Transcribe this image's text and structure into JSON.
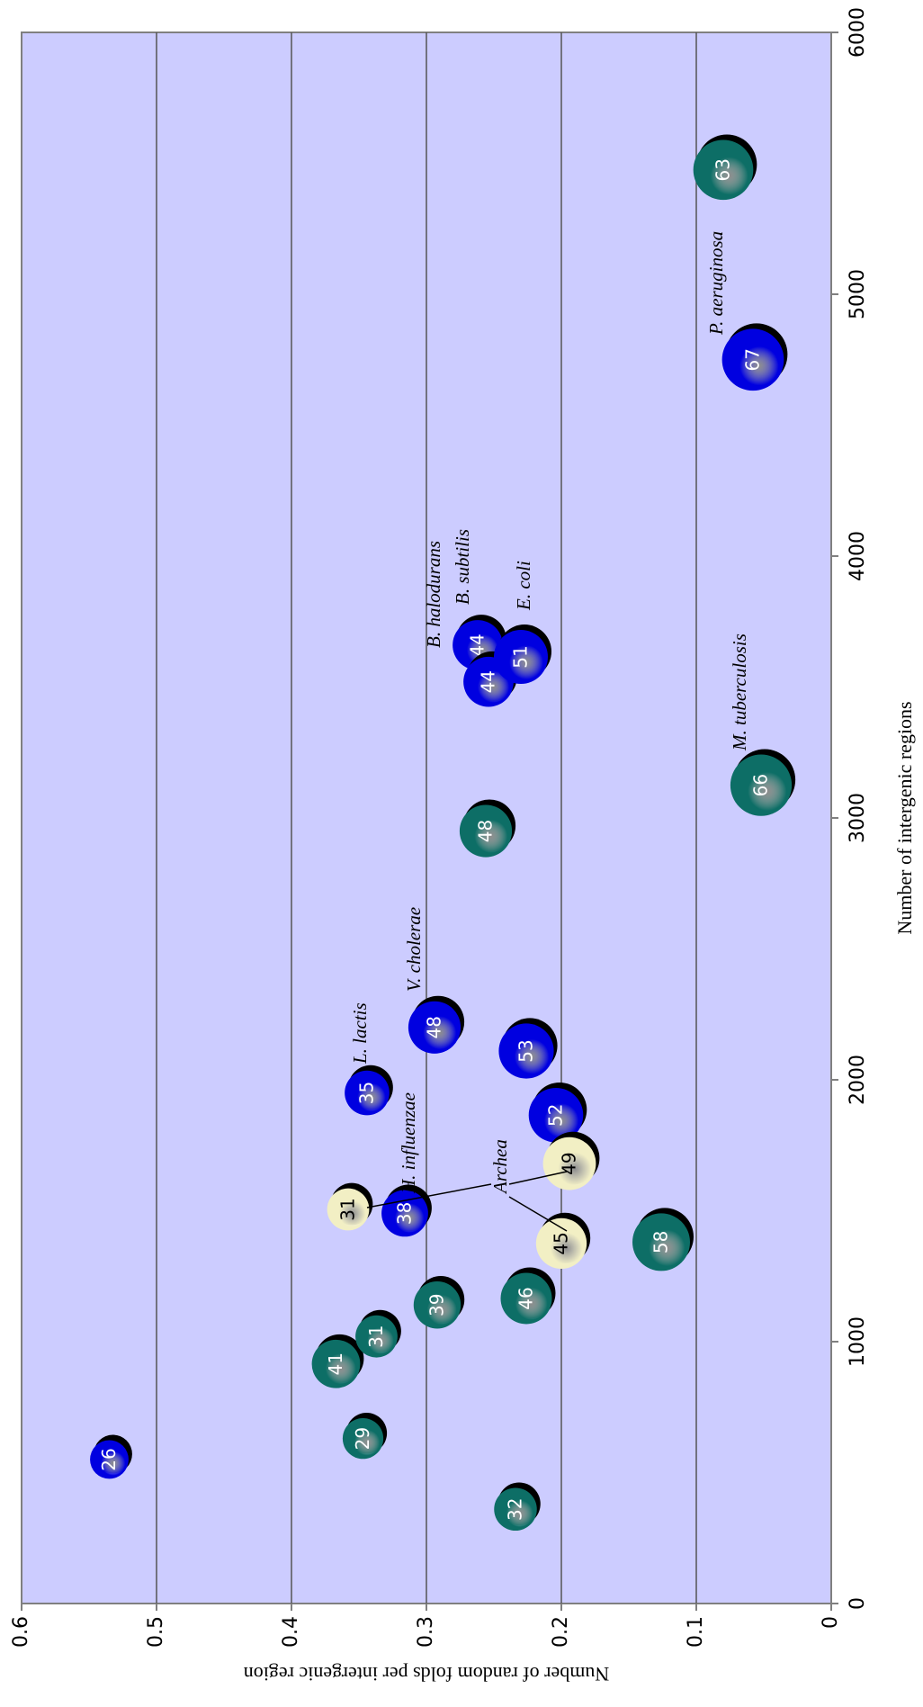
{
  "chart_data": {
    "type": "bubble",
    "x_label": "Number of intergenic regions",
    "y_label": "Number of random folds per intergenic region",
    "xlim": [
      0,
      6000
    ],
    "xticks": [
      0,
      1000,
      2000,
      3000,
      4000,
      5000,
      6000
    ],
    "ylim": [
      0,
      0.6
    ],
    "yticks": [
      0,
      0.1,
      0.2,
      0.3,
      0.4,
      0.5,
      0.6
    ],
    "grid": true,
    "series": [
      {
        "color": "#0000e0",
        "x": [
          550,
          1950,
          1490,
          2200,
          2110,
          1865,
          3660,
          3520,
          3615,
          4750
        ],
        "values": [
          0.535,
          0.344,
          0.316,
          0.294,
          0.226,
          0.204,
          0.262,
          0.254,
          0.23,
          0.058
        ],
        "sizes": [
          26,
          35,
          38,
          48,
          53,
          52,
          44,
          44,
          51,
          67
        ]
      },
      {
        "color": "#0d6e66",
        "x": [
          360,
          630,
          915,
          1020,
          1140,
          1165,
          1380,
          2950,
          3125,
          5475
        ],
        "values": [
          0.234,
          0.347,
          0.367,
          0.337,
          0.292,
          0.226,
          0.126,
          0.256,
          0.052,
          0.08
        ],
        "sizes": [
          32,
          29,
          41,
          31,
          39,
          46,
          58,
          48,
          66,
          63
        ]
      },
      {
        "color": "#f2efc4",
        "x": [
          1505,
          1375,
          1680
        ],
        "values": [
          0.358,
          0.2,
          0.194
        ],
        "sizes": [
          31,
          45,
          49
        ]
      }
    ],
    "annotations": [
      "L. lactis",
      "V. cholerae",
      "H. influenzae",
      "Archea",
      "B. halodurans",
      "B. subtilis",
      "E. coli",
      "M. tuberculosis",
      "P. aeruginosa"
    ]
  }
}
